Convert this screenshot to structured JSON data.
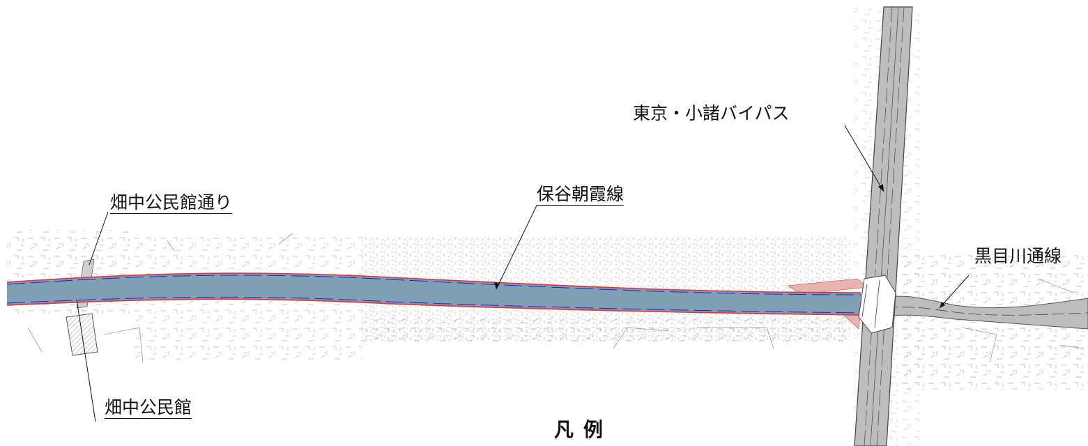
{
  "labels": {
    "hatanaka_kominkan_dori": "畑中公民館通り",
    "hoya_asaka_sen": "保谷朝霞線",
    "tokyo_komoro_bypass": "東京・小諸バイパス",
    "kuromegawa_dori_sen": "黒目川通線",
    "hatanaka_kominkan": "畑中公民館"
  },
  "legend": {
    "title": "凡例"
  },
  "colors": {
    "project_road_fill": "#7f9fb3",
    "widening_area": "#e8b4b0",
    "boundary_line": "#e83030",
    "center_line": "#2020d0",
    "existing_road_fill": "#bdbdbd",
    "linework": "#8a8a8a"
  }
}
